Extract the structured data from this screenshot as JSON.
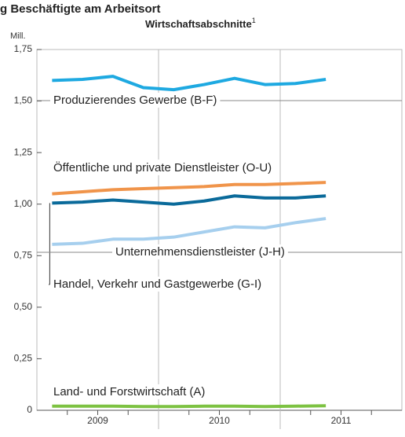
{
  "chart_data": {
    "type": "line",
    "title": "g Beschäftigte am Arbeitsort",
    "subtitle": "Wirtschaftsabschnitte",
    "subtitle_note": "1",
    "y_unit": "Mill.",
    "categories": [
      null,
      null,
      null,
      null,
      null,
      null,
      null,
      null,
      null,
      null,
      null,
      null
    ],
    "years": [
      "2009",
      "2010",
      "2011"
    ],
    "ylim": [
      0,
      1.75
    ],
    "yticks": [
      0,
      {
        "value": 0.25,
        "label": "0,25"
      },
      {
        "value": 0.5,
        "label": "0,50"
      },
      {
        "value": 0.75,
        "label": "0,75"
      },
      {
        "value": 1,
        "label": "1,00"
      },
      {
        "value": 1.25,
        "label": "1,25"
      },
      {
        "value": 1.5,
        "label": "1,50"
      },
      {
        "value": 1.75,
        "label": "1,75"
      }
    ],
    "series": [
      {
        "name": "Produzierendes Gewerbe (B-F)",
        "color": "#1ea9e1",
        "values": [
          1.6,
          1.605,
          1.62,
          1.565,
          1.555,
          1.58,
          1.61,
          1.58,
          1.585,
          1.605,
          null,
          null
        ]
      },
      {
        "name": "Öffentliche und private Dienstleister (O-U)",
        "color": "#f0944a",
        "values": [
          1.05,
          1.06,
          1.07,
          1.075,
          1.08,
          1.085,
          1.095,
          1.095,
          1.1,
          1.105,
          null,
          null
        ]
      },
      {
        "name": "Handel, Verkehr und Gastgewerbe (G-I)",
        "color": "#0a6a9a",
        "values": [
          1.005,
          1.01,
          1.02,
          1.01,
          1.0,
          1.015,
          1.04,
          1.03,
          1.03,
          1.04,
          null,
          null
        ]
      },
      {
        "name": "Unternehmensdienstleister (J-H)",
        "color": "#a6cfee",
        "values": [
          0.805,
          0.81,
          0.83,
          0.83,
          0.84,
          0.865,
          0.89,
          0.885,
          0.91,
          0.93,
          null,
          null
        ]
      },
      {
        "name": "Land- und Forstwirtschaft (A)",
        "color": "#7dc242",
        "values": [
          0.02,
          0.02,
          0.02,
          0.018,
          0.018,
          0.02,
          0.02,
          0.018,
          0.02,
          0.022,
          null,
          null
        ]
      }
    ]
  }
}
